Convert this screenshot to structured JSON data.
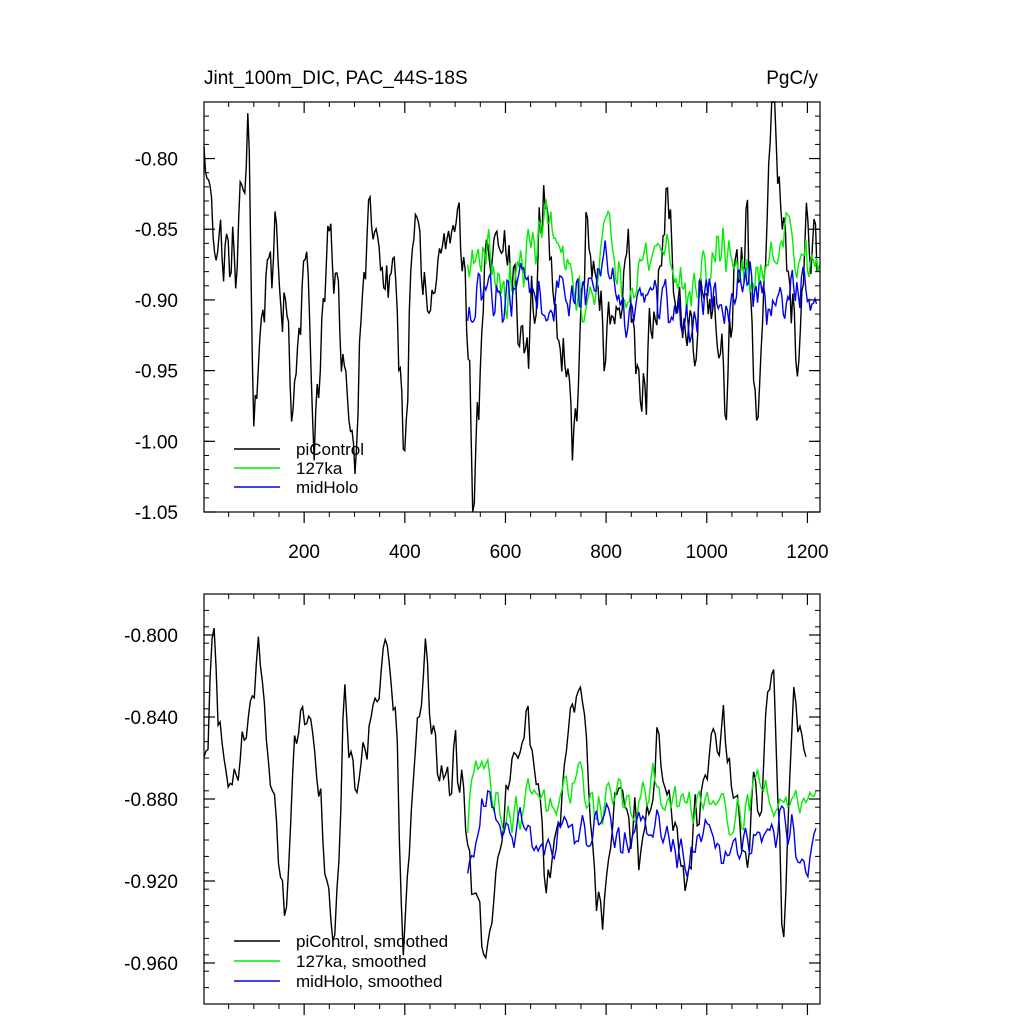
{
  "chart_data": [
    {
      "type": "line",
      "title": "Jint_100m_DIC, PAC_44S-18S",
      "units": "PgC/y",
      "xlim": [
        1,
        1225
      ],
      "ylim": [
        -1.05,
        -0.76
      ],
      "yticks": [
        -0.8,
        -0.85,
        -0.9,
        -0.95,
        -1.0,
        -1.05
      ],
      "ytick_labels": [
        "-0.80",
        "-0.85",
        "-0.90",
        "-0.95",
        "-1.00",
        "-1.05"
      ],
      "xticks": [
        200,
        400,
        600,
        800,
        1000,
        1200
      ],
      "xtick_labels": [
        "200",
        "400",
        "600",
        "800",
        "1000",
        "1200"
      ],
      "legend_position": "bottom-left",
      "series": [
        {
          "name": "piControl",
          "color": "#000000",
          "x_start": 1,
          "x_end": 1220,
          "x": [
            1,
            30,
            60,
            90,
            100,
            130,
            160,
            180,
            200,
            220,
            250,
            280,
            300,
            330,
            360,
            380,
            400,
            420,
            450,
            480,
            500,
            520,
            535,
            560,
            600,
            640,
            680,
            720,
            740,
            760,
            800,
            840,
            880,
            920,
            960,
            1000,
            1040,
            1080,
            1100,
            1130,
            1160,
            1180,
            1200,
            1220
          ],
          "y": [
            -0.8,
            -0.86,
            -0.88,
            -0.79,
            -0.98,
            -0.86,
            -0.9,
            -0.97,
            -0.85,
            -0.99,
            -0.86,
            -0.94,
            -1.0,
            -0.83,
            -0.9,
            -0.87,
            -1.01,
            -0.84,
            -0.91,
            -0.86,
            -0.88,
            -0.85,
            -1.04,
            -0.89,
            -0.86,
            -0.94,
            -0.83,
            -0.95,
            -1.0,
            -0.85,
            -0.93,
            -0.88,
            -0.96,
            -0.84,
            -0.93,
            -0.88,
            -0.95,
            -0.84,
            -0.99,
            -0.77,
            -0.88,
            -0.93,
            -0.85,
            -0.88
          ]
        },
        {
          "name": "127ka",
          "color": "#00ee00",
          "x_start": 525,
          "x_end": 1225,
          "x": [
            525,
            560,
            600,
            640,
            680,
            720,
            760,
            800,
            840,
            880,
            920,
            960,
            1000,
            1040,
            1080,
            1120,
            1160,
            1200,
            1225
          ],
          "y": [
            -0.88,
            -0.86,
            -0.9,
            -0.87,
            -0.84,
            -0.88,
            -0.91,
            -0.85,
            -0.89,
            -0.87,
            -0.86,
            -0.9,
            -0.88,
            -0.86,
            -0.89,
            -0.87,
            -0.85,
            -0.88,
            -0.87
          ]
        },
        {
          "name": "midHolo",
          "color": "#0000ee",
          "x_start": 525,
          "x_end": 1220,
          "x": [
            525,
            560,
            600,
            640,
            680,
            720,
            760,
            800,
            840,
            880,
            920,
            960,
            1000,
            1040,
            1080,
            1120,
            1160,
            1200,
            1220
          ],
          "y": [
            -0.92,
            -0.89,
            -0.9,
            -0.88,
            -0.91,
            -0.89,
            -0.9,
            -0.87,
            -0.91,
            -0.89,
            -0.9,
            -0.92,
            -0.89,
            -0.9,
            -0.88,
            -0.91,
            -0.9,
            -0.89,
            -0.9
          ]
        }
      ]
    },
    {
      "type": "line",
      "xlim": [
        1,
        1225
      ],
      "ylim": [
        -0.98,
        -0.78
      ],
      "yticks": [
        -0.8,
        -0.84,
        -0.88,
        -0.92,
        -0.96
      ],
      "ytick_labels": [
        "-0.800",
        "-0.840",
        "-0.880",
        "-0.920",
        "-0.960"
      ],
      "legend_position": "bottom-left",
      "series": [
        {
          "name": "piControl, smoothed",
          "color": "#000000",
          "x": [
            1,
            20,
            35,
            55,
            80,
            110,
            135,
            160,
            180,
            210,
            230,
            260,
            280,
            300,
            330,
            360,
            385,
            395,
            410,
            440,
            470,
            500,
            530,
            560,
            600,
            640,
            680,
            720,
            750,
            790,
            830,
            870,
            910,
            950,
            990,
            1030,
            1070,
            1110,
            1130,
            1150,
            1175,
            1200
          ],
          "y": [
            -0.865,
            -0.8,
            -0.84,
            -0.89,
            -0.86,
            -0.805,
            -0.88,
            -0.935,
            -0.87,
            -0.83,
            -0.88,
            -0.95,
            -0.84,
            -0.87,
            -0.855,
            -0.8,
            -0.85,
            -0.975,
            -0.89,
            -0.805,
            -0.88,
            -0.86,
            -0.92,
            -0.95,
            -0.88,
            -0.84,
            -0.92,
            -0.86,
            -0.83,
            -0.94,
            -0.87,
            -0.9,
            -0.85,
            -0.93,
            -0.88,
            -0.84,
            -0.91,
            -0.87,
            -0.805,
            -0.95,
            -0.82,
            -0.855
          ]
        },
        {
          "name": "127ka, smoothed",
          "color": "#00ee00",
          "x": [
            525,
            540,
            580,
            620,
            660,
            700,
            740,
            780,
            820,
            860,
            900,
            940,
            980,
            1020,
            1060,
            1100,
            1140,
            1180,
            1220
          ],
          "y": [
            -0.9,
            -0.85,
            -0.88,
            -0.89,
            -0.87,
            -0.895,
            -0.865,
            -0.885,
            -0.875,
            -0.89,
            -0.87,
            -0.885,
            -0.88,
            -0.875,
            -0.89,
            -0.87,
            -0.885,
            -0.88,
            -0.87
          ]
        },
        {
          "name": "midHolo, smoothed",
          "color": "#0000ee",
          "x": [
            525,
            560,
            600,
            640,
            680,
            720,
            760,
            800,
            840,
            880,
            920,
            960,
            1000,
            1040,
            1080,
            1120,
            1160,
            1200,
            1220
          ],
          "y": [
            -0.92,
            -0.88,
            -0.895,
            -0.89,
            -0.905,
            -0.89,
            -0.9,
            -0.885,
            -0.905,
            -0.89,
            -0.895,
            -0.91,
            -0.89,
            -0.905,
            -0.895,
            -0.9,
            -0.89,
            -0.91,
            -0.9
          ]
        }
      ]
    }
  ]
}
